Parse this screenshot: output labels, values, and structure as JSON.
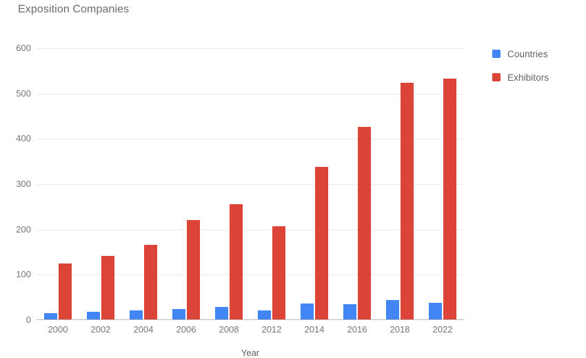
{
  "title": "Exposition Companies",
  "colors": {
    "countries": "#4285F4",
    "exhibitors": "#DB4437",
    "title_text": "#6c6c6c",
    "axis_text": "#757575",
    "gridline": "#ebebeb",
    "baseline": "#b9b9b9"
  },
  "legend": {
    "items": [
      {
        "label": "Countries",
        "color": "#4285F4"
      },
      {
        "label": "Exhibitors",
        "color": "#DB4437"
      }
    ]
  },
  "axes": {
    "x_label": "Year",
    "y_ticks": [
      "0",
      "100",
      "200",
      "300",
      "400",
      "500",
      "600"
    ]
  },
  "chart_data": {
    "type": "bar",
    "title": "Exposition Companies",
    "categories": [
      "2000",
      "2002",
      "2004",
      "2006",
      "2008",
      "2012",
      "2014",
      "2016",
      "2018",
      "2022"
    ],
    "series": [
      {
        "name": "Countries",
        "color": "#4285F4",
        "values": [
          13,
          17,
          20,
          23,
          27,
          20,
          35,
          33,
          43,
          36
        ]
      },
      {
        "name": "Exhibitors",
        "color": "#DB4437",
        "values": [
          124,
          140,
          164,
          220,
          255,
          206,
          337,
          425,
          523,
          531
        ]
      }
    ],
    "xlabel": "Year",
    "ylabel": "",
    "ylim": [
      0,
      600
    ],
    "yticks": [
      0,
      100,
      200,
      300,
      400,
      500,
      600
    ],
    "grid": true,
    "legend_position": "right"
  }
}
